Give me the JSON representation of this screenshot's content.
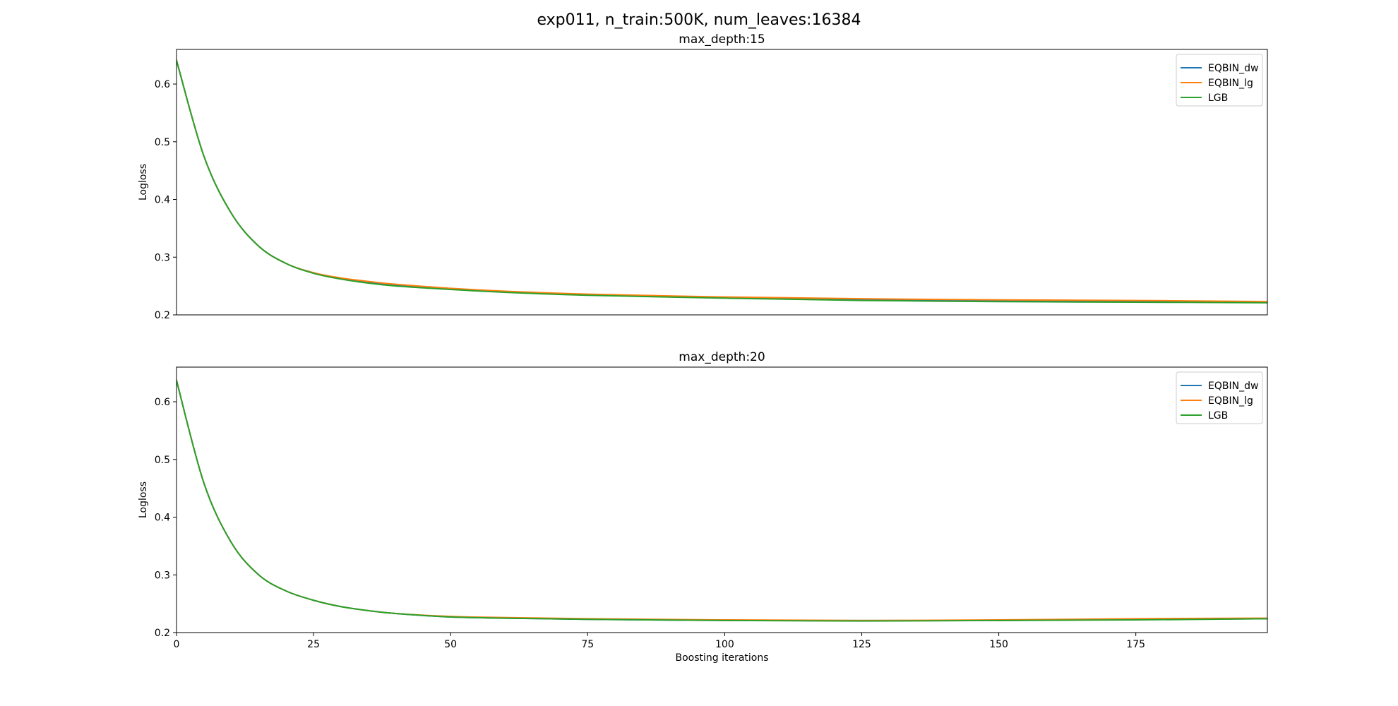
{
  "figure": {
    "suptitle": "exp011, n_train:500K, num_leaves:16384"
  },
  "colors": {
    "EQBIN_dw": "#1f77b4",
    "EQBIN_lg": "#ff7f0e",
    "LGB": "#2ca02c"
  },
  "chart_data": [
    {
      "type": "line",
      "title": "max_depth:15",
      "xlabel": "",
      "ylabel": "Logloss",
      "xlim": [
        0,
        199
      ],
      "ylim": [
        0.2,
        0.66
      ],
      "xticks": [],
      "yticks": [
        0.2,
        0.3,
        0.4,
        0.5,
        0.6
      ],
      "grid": false,
      "legend": "top-right",
      "series": [
        {
          "name": "EQBIN_dw",
          "x": [
            0,
            5,
            10,
            15,
            20,
            25,
            30,
            35,
            40,
            50,
            60,
            75,
            100,
            125,
            150,
            175,
            199
          ],
          "y": [
            0.641,
            0.475,
            0.376,
            0.319,
            0.289,
            0.273,
            0.263,
            0.256,
            0.251,
            0.245,
            0.24,
            0.235,
            0.23,
            0.227,
            0.225,
            0.224,
            0.222
          ]
        },
        {
          "name": "EQBIN_lg",
          "x": [
            0,
            5,
            10,
            15,
            20,
            25,
            30,
            35,
            40,
            50,
            60,
            75,
            100,
            125,
            150,
            175,
            199
          ],
          "y": [
            0.641,
            0.475,
            0.376,
            0.319,
            0.289,
            0.273,
            0.264,
            0.258,
            0.253,
            0.246,
            0.241,
            0.236,
            0.231,
            0.228,
            0.226,
            0.225,
            0.223
          ]
        },
        {
          "name": "LGB",
          "x": [
            0,
            5,
            10,
            15,
            20,
            25,
            30,
            35,
            40,
            50,
            60,
            75,
            100,
            125,
            150,
            175,
            199
          ],
          "y": [
            0.641,
            0.475,
            0.376,
            0.319,
            0.289,
            0.272,
            0.262,
            0.255,
            0.25,
            0.244,
            0.239,
            0.234,
            0.229,
            0.225,
            0.223,
            0.222,
            0.221
          ]
        }
      ]
    },
    {
      "type": "line",
      "title": "max_depth:20",
      "xlabel": "Boosting iterations",
      "ylabel": "Logloss",
      "xlim": [
        0,
        199
      ],
      "ylim": [
        0.2,
        0.66
      ],
      "xticks": [
        0,
        25,
        50,
        75,
        100,
        125,
        150,
        175
      ],
      "yticks": [
        0.2,
        0.3,
        0.4,
        0.5,
        0.6
      ],
      "grid": false,
      "legend": "top-right",
      "series": [
        {
          "name": "EQBIN_dw",
          "x": [
            0,
            5,
            10,
            15,
            20,
            25,
            30,
            35,
            40,
            50,
            60,
            75,
            100,
            125,
            150,
            175,
            199
          ],
          "y": [
            0.637,
            0.459,
            0.356,
            0.3,
            0.272,
            0.256,
            0.245,
            0.238,
            0.233,
            0.227,
            0.225,
            0.223,
            0.221,
            0.221,
            0.221,
            0.223,
            0.224
          ]
        },
        {
          "name": "EQBIN_lg",
          "x": [
            0,
            5,
            10,
            15,
            20,
            25,
            30,
            35,
            40,
            50,
            60,
            75,
            100,
            125,
            150,
            175,
            199
          ],
          "y": [
            0.637,
            0.459,
            0.356,
            0.3,
            0.272,
            0.256,
            0.245,
            0.238,
            0.233,
            0.228,
            0.226,
            0.224,
            0.222,
            0.221,
            0.222,
            0.224,
            0.225
          ]
        },
        {
          "name": "LGB",
          "x": [
            0,
            5,
            10,
            15,
            20,
            25,
            30,
            35,
            40,
            50,
            60,
            75,
            100,
            125,
            150,
            175,
            199
          ],
          "y": [
            0.637,
            0.459,
            0.356,
            0.3,
            0.272,
            0.256,
            0.245,
            0.238,
            0.233,
            0.227,
            0.225,
            0.223,
            0.221,
            0.22,
            0.221,
            0.222,
            0.224
          ]
        }
      ]
    }
  ]
}
